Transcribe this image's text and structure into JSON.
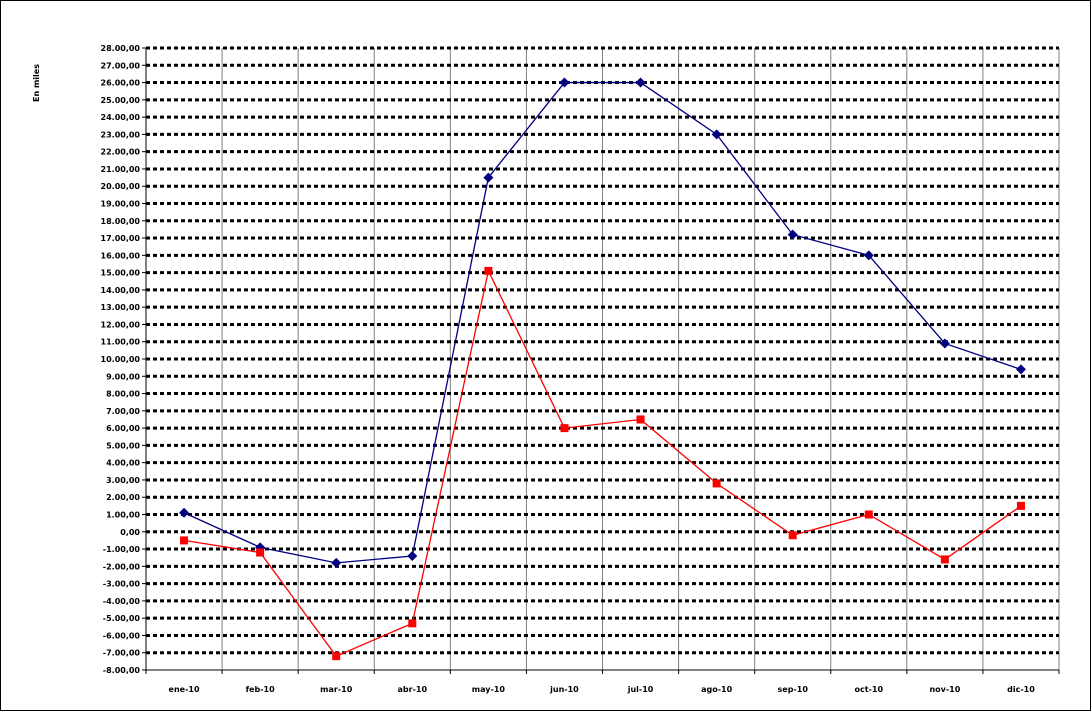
{
  "chart_data": {
    "type": "line",
    "title": "",
    "xlabel": "",
    "ylabel": "En miles",
    "ylim": [
      -8,
      28
    ],
    "y_tick_step": 1,
    "y_tick_labels": [
      "-8.00,00",
      "-7.00,00",
      "-6.00,00",
      "-5.00,00",
      "-4.00,00",
      "-3.00,00",
      "-2.00,00",
      "-1.00,00",
      "0,00",
      "1.00,00",
      "2.00,00",
      "3.00,00",
      "4.00,00",
      "5.00,00",
      "6.00,00",
      "7.00,00",
      "8.00,00",
      "9.00,00",
      "10.00,00",
      "11.00,00",
      "12.00,00",
      "13.00,00",
      "14.00,00",
      "15.00,00",
      "16.00,00",
      "17.00,00",
      "18.00,00",
      "19.00,00",
      "20.00,00",
      "21.00,00",
      "22.00,00",
      "23.00,00",
      "24.00,00",
      "25.00,00",
      "26.00,00",
      "27.00,00",
      "28.00,00"
    ],
    "categories": [
      "ene-10",
      "feb-10",
      "mar-10",
      "abr-10",
      "may-10",
      "jun-10",
      "jul-10",
      "ago-10",
      "sep-10",
      "oct-10",
      "nov-10",
      "dic-10"
    ],
    "grid": true,
    "legend": "none",
    "series": [
      {
        "color": "#000080",
        "marker": "diamond",
        "values": [
          1.1,
          -0.9,
          -1.8,
          -1.4,
          20.5,
          26.0,
          26.0,
          23.0,
          17.2,
          16.0,
          10.9,
          9.4
        ]
      },
      {
        "color": "#ff0000",
        "marker": "square",
        "values": [
          -0.5,
          -1.2,
          -7.2,
          -5.3,
          15.1,
          6.0,
          6.5,
          2.8,
          -0.2,
          1.0,
          -1.6,
          1.5
        ]
      }
    ]
  }
}
